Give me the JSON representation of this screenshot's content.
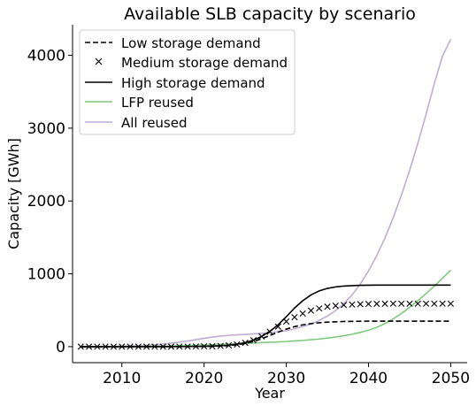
{
  "chart_data": {
    "type": "line",
    "title": "Available SLB capacity by scenario",
    "xlabel": "Year",
    "ylabel": "Capacity [GWh]",
    "xlim": [
      2004,
      2052
    ],
    "ylim": [
      -220,
      4420
    ],
    "xticks": [
      2010,
      2020,
      2030,
      2040,
      2050
    ],
    "yticks": [
      0,
      1000,
      2000,
      3000,
      4000
    ],
    "legend_position": "upper-left",
    "x": [
      2005,
      2006,
      2007,
      2008,
      2009,
      2010,
      2011,
      2012,
      2013,
      2014,
      2015,
      2016,
      2017,
      2018,
      2019,
      2020,
      2021,
      2022,
      2023,
      2024,
      2025,
      2026,
      2027,
      2028,
      2029,
      2030,
      2031,
      2032,
      2033,
      2034,
      2035,
      2036,
      2037,
      2038,
      2039,
      2040,
      2041,
      2042,
      2043,
      2044,
      2045,
      2046,
      2047,
      2048,
      2049,
      2050
    ],
    "series": [
      {
        "name": "Low storage demand",
        "color": "#000000",
        "style": "dashed",
        "values": [
          0,
          0,
          0,
          0,
          0,
          0,
          0,
          0,
          0,
          0,
          0,
          0,
          1,
          1,
          2,
          3,
          5,
          9,
          15,
          26,
          43,
          70,
          108,
          153,
          199,
          241,
          274,
          299,
          316,
          328,
          336,
          341,
          345,
          347,
          349,
          350,
          350,
          350,
          350,
          350,
          350,
          350,
          350,
          350,
          350,
          350
        ]
      },
      {
        "name": "Medium storage demand",
        "color": "#000000",
        "style": "x-markers",
        "values": [
          0,
          0,
          0,
          0,
          0,
          0,
          0,
          0,
          0,
          0,
          0,
          0,
          1,
          1,
          2,
          4,
          6,
          10,
          18,
          30,
          52,
          88,
          140,
          205,
          275,
          345,
          405,
          455,
          495,
          525,
          548,
          562,
          572,
          578,
          583,
          586,
          588,
          589,
          590,
          590,
          590,
          590,
          590,
          590,
          590,
          590
        ]
      },
      {
        "name": "High storage demand",
        "color": "#000000",
        "style": "solid",
        "values": [
          0,
          0,
          0,
          0,
          0,
          0,
          0,
          0,
          0,
          0,
          0,
          1,
          1,
          2,
          3,
          4,
          7,
          12,
          20,
          33,
          55,
          90,
          140,
          210,
          300,
          410,
          530,
          630,
          710,
          765,
          800,
          820,
          832,
          838,
          842,
          844,
          845,
          845,
          845,
          845,
          845,
          845,
          845,
          845,
          845,
          845
        ]
      },
      {
        "name": "LFP reused",
        "color": "#7fc97f",
        "style": "solid",
        "values": [
          0,
          0,
          0,
          0,
          0,
          1,
          2,
          3,
          4,
          6,
          8,
          10,
          12,
          15,
          18,
          22,
          26,
          30,
          35,
          40,
          45,
          50,
          55,
          60,
          65,
          70,
          78,
          85,
          95,
          105,
          118,
          132,
          150,
          170,
          195,
          225,
          265,
          315,
          380,
          455,
          540,
          630,
          730,
          830,
          940,
          1050
        ]
      },
      {
        "name": "All reused",
        "color": "#beaed4",
        "style": "solid",
        "values": [
          0,
          0,
          1,
          2,
          3,
          5,
          8,
          12,
          18,
          25,
          35,
          48,
          62,
          78,
          95,
          115,
          130,
          145,
          155,
          162,
          168,
          175,
          183,
          192,
          204,
          220,
          245,
          275,
          310,
          360,
          420,
          495,
          590,
          710,
          860,
          1040,
          1250,
          1490,
          1770,
          2080,
          2420,
          2790,
          3190,
          3610,
          3990,
          4220
        ]
      }
    ]
  }
}
